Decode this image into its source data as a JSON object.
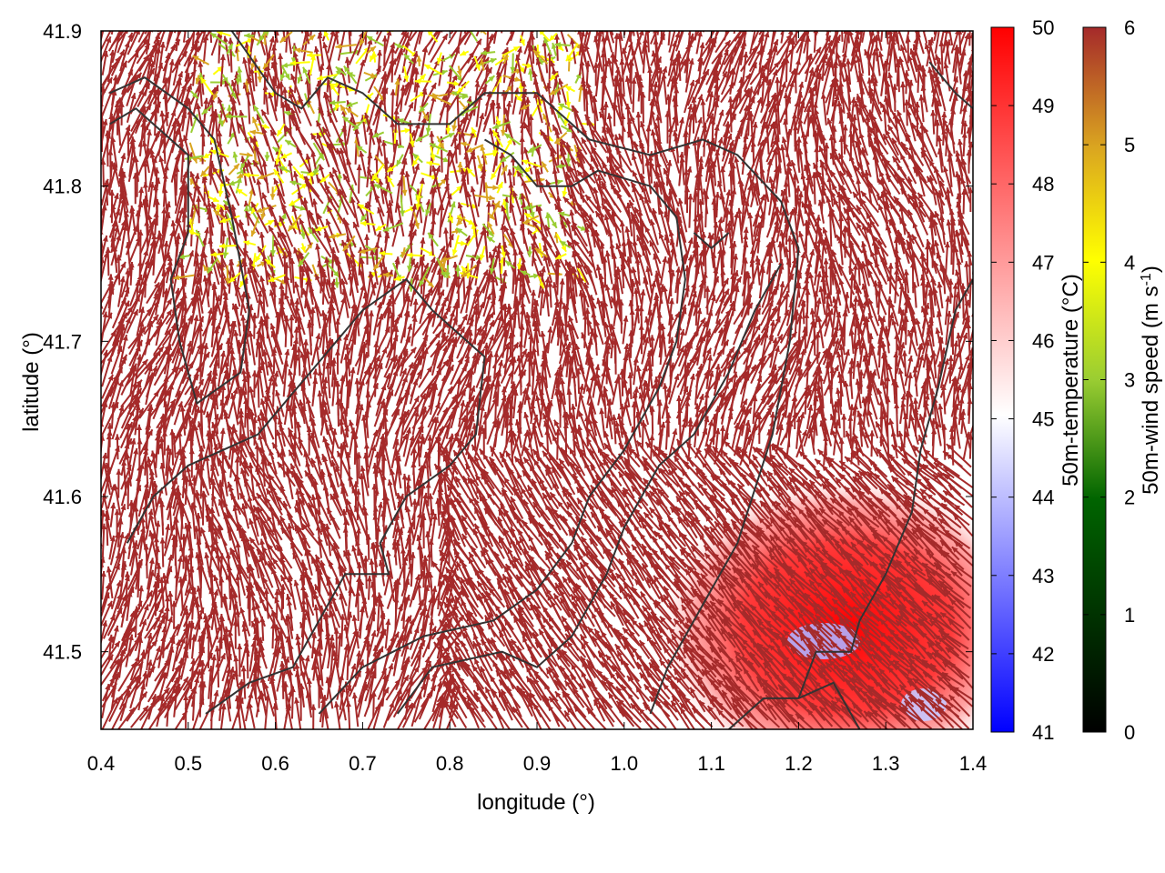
{
  "chart_data": {
    "type": "vector-field",
    "xlabel": "longitude (°)",
    "ylabel": "latitude (°)",
    "xlim": [
      0.4,
      1.4
    ],
    "ylim": [
      41.45,
      41.9
    ],
    "xticks": [
      "0.4",
      "0.5",
      "0.6",
      "0.7",
      "0.8",
      "0.9",
      "1.0",
      "1.1",
      "1.2",
      "1.3",
      "1.4"
    ],
    "yticks": [
      "41.5",
      "41.6",
      "41.7",
      "41.8",
      "41.9"
    ],
    "xtick_values": [
      0.4,
      0.5,
      0.6,
      0.7,
      0.8,
      0.9,
      1.0,
      1.1,
      1.2,
      1.3,
      1.4
    ],
    "ytick_values": [
      41.5,
      41.6,
      41.7,
      41.8,
      41.9
    ],
    "temperature_colorbar": {
      "label": "50m-temperature (°C)",
      "range": [
        41,
        50
      ],
      "ticks": [
        "41",
        "42",
        "43",
        "44",
        "45",
        "46",
        "47",
        "48",
        "49",
        "50"
      ],
      "colors": [
        "#0000ff",
        "#ffffff",
        "#ff0000"
      ]
    },
    "wind_colorbar": {
      "label": "50m-wind speed (m s",
      "label_sup": "-1",
      "label_end": ")",
      "range": [
        0,
        6
      ],
      "ticks": [
        "0",
        "1",
        "2",
        "3",
        "4",
        "5",
        "6"
      ],
      "colors": [
        "#000000",
        "#006400",
        "#9acd32",
        "#ffff00",
        "#daa520",
        "#a52a2a"
      ]
    },
    "arrow_color": "#a52a2a",
    "contour_color": "#333333",
    "contours": [
      [
        [
          0.43,
          41.57
        ],
        [
          0.46,
          41.6
        ],
        [
          0.5,
          41.62
        ],
        [
          0.58,
          41.64
        ],
        [
          0.64,
          41.68
        ],
        [
          0.7,
          41.72
        ],
        [
          0.75,
          41.74
        ],
        [
          0.78,
          41.72
        ],
        [
          0.84,
          41.69
        ],
        [
          0.83,
          41.64
        ],
        [
          0.8,
          41.62
        ],
        [
          0.75,
          41.6
        ],
        [
          0.72,
          41.57
        ],
        [
          0.73,
          41.55
        ],
        [
          0.68,
          41.55
        ],
        [
          0.65,
          41.52
        ],
        [
          0.62,
          41.49
        ],
        [
          0.57,
          41.48
        ],
        [
          0.52,
          41.46
        ]
      ],
      [
        [
          0.41,
          41.86
        ],
        [
          0.45,
          41.87
        ],
        [
          0.5,
          41.85
        ],
        [
          0.53,
          41.83
        ],
        [
          0.55,
          41.78
        ],
        [
          0.57,
          41.72
        ],
        [
          0.56,
          41.68
        ],
        [
          0.51,
          41.66
        ],
        [
          0.49,
          41.7
        ],
        [
          0.48,
          41.74
        ],
        [
          0.5,
          41.77
        ],
        [
          0.5,
          41.82
        ],
        [
          0.44,
          41.85
        ],
        [
          0.41,
          41.84
        ]
      ],
      [
        [
          0.55,
          41.9
        ],
        [
          0.6,
          41.86
        ],
        [
          0.63,
          41.85
        ],
        [
          0.66,
          41.87
        ],
        [
          0.7,
          41.86
        ],
        [
          0.74,
          41.84
        ],
        [
          0.8,
          41.84
        ],
        [
          0.84,
          41.86
        ],
        [
          0.9,
          41.86
        ],
        [
          0.96,
          41.83
        ],
        [
          1.03,
          41.82
        ],
        [
          1.09,
          41.83
        ],
        [
          1.13,
          41.82
        ],
        [
          1.18,
          41.79
        ],
        [
          1.2,
          41.76
        ],
        [
          1.19,
          41.7
        ],
        [
          1.17,
          41.64
        ],
        [
          1.13,
          41.57
        ],
        [
          1.08,
          41.52
        ],
        [
          1.05,
          41.49
        ],
        [
          1.03,
          41.46
        ]
      ],
      [
        [
          0.65,
          41.46
        ],
        [
          0.7,
          41.49
        ],
        [
          0.77,
          41.51
        ],
        [
          0.85,
          41.52
        ],
        [
          0.9,
          41.54
        ],
        [
          0.94,
          41.57
        ],
        [
          0.96,
          41.6
        ],
        [
          1.0,
          41.63
        ],
        [
          1.04,
          41.67
        ],
        [
          1.06,
          41.7
        ],
        [
          1.07,
          41.74
        ],
        [
          1.06,
          41.78
        ],
        [
          1.03,
          41.8
        ],
        [
          0.97,
          41.81
        ],
        [
          0.94,
          41.8
        ],
        [
          0.9,
          41.8
        ],
        [
          0.87,
          41.82
        ],
        [
          0.84,
          41.83
        ]
      ],
      [
        [
          0.74,
          41.46
        ],
        [
          0.78,
          41.49
        ],
        [
          0.86,
          41.5
        ],
        [
          0.9,
          41.49
        ],
        [
          0.94,
          41.51
        ],
        [
          0.98,
          41.55
        ],
        [
          1.0,
          41.58
        ],
        [
          1.04,
          41.62
        ],
        [
          1.08,
          41.64
        ],
        [
          1.12,
          41.68
        ],
        [
          1.15,
          41.72
        ],
        [
          1.18,
          41.75
        ]
      ],
      [
        [
          1.12,
          41.45
        ],
        [
          1.16,
          41.47
        ],
        [
          1.2,
          41.47
        ],
        [
          1.24,
          41.48
        ],
        [
          1.27,
          41.45
        ]
      ],
      [
        [
          1.2,
          41.47
        ],
        [
          1.22,
          41.5
        ],
        [
          1.26,
          41.5
        ],
        [
          1.27,
          41.52
        ],
        [
          1.3,
          41.55
        ],
        [
          1.33,
          41.59
        ],
        [
          1.34,
          41.63
        ],
        [
          1.36,
          41.67
        ],
        [
          1.38,
          41.72
        ],
        [
          1.4,
          41.74
        ]
      ],
      [
        [
          1.08,
          41.77
        ],
        [
          1.1,
          41.76
        ],
        [
          1.12,
          41.77
        ]
      ],
      [
        [
          1.35,
          41.88
        ],
        [
          1.38,
          41.86
        ],
        [
          1.4,
          41.85
        ]
      ]
    ],
    "warm_region": {
      "center": [
        1.26,
        41.5
      ],
      "note": ""
    }
  }
}
